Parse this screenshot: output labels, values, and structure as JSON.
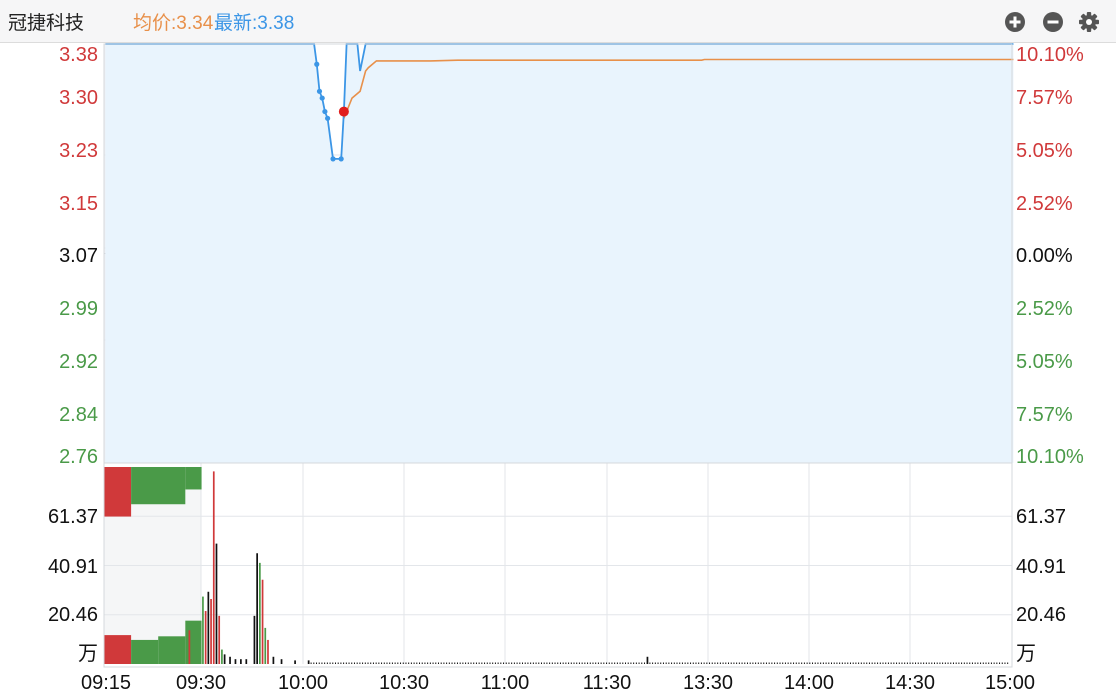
{
  "header": {
    "stock_name": "冠捷科技",
    "avg_text": "均价:3.34",
    "last_text": "最新:3.38",
    "buttons": [
      "zoom-in-icon",
      "zoom-out-icon",
      "settings-gear-icon"
    ]
  },
  "colors": {
    "up": "#d0393a",
    "down": "#4a9a48",
    "neutral": "#111111",
    "price_line": "#3c96e6",
    "avg_line": "#e8904a",
    "area_fill": "#e9f4fd",
    "pre_market_fill": "#eef1f4",
    "grid": "#e3e6ea"
  },
  "chart_data": {
    "type": "line",
    "price_axis": {
      "left_ticks": [
        "3.38",
        "3.30",
        "3.23",
        "3.15",
        "3.07",
        "2.99",
        "2.92",
        "2.84",
        "2.76"
      ],
      "right_ticks": [
        "10.10%",
        "7.57%",
        "5.05%",
        "2.52%",
        "0.00%",
        "2.52%",
        "5.05%",
        "7.57%",
        "10.10%"
      ],
      "tick_values": [
        3.38,
        3.3,
        3.23,
        3.15,
        3.07,
        2.99,
        2.92,
        2.84,
        2.76
      ],
      "tick_direction": [
        "up",
        "up",
        "up",
        "up",
        "neutral",
        "down",
        "down",
        "down",
        "down"
      ],
      "ylim": [
        2.76,
        3.38
      ],
      "prev_close": 3.07
    },
    "volume_axis": {
      "left_ticks": [
        "61.37",
        "40.91",
        "20.46"
      ],
      "right_ticks": [
        "61.37",
        "40.91",
        "20.46"
      ],
      "tick_values": [
        61.37,
        40.91,
        20.46
      ],
      "unit": "万",
      "ylim": [
        0,
        81.82
      ]
    },
    "time_axis": {
      "labels": [
        "09:15",
        "09:30",
        "10:00",
        "10:30",
        "11:00",
        "11:30",
        "13:30",
        "14:00",
        "14:30",
        "15:00"
      ]
    },
    "series": [
      {
        "name": "最新",
        "points": [
          [
            0,
            3.38
          ],
          [
            77,
            3.38
          ],
          [
            78,
            3.35
          ],
          [
            79,
            3.31
          ],
          [
            80,
            3.3
          ],
          [
            81,
            3.28
          ],
          [
            82,
            3.27
          ],
          [
            84,
            3.21
          ],
          [
            87,
            3.21
          ],
          [
            88,
            3.28
          ],
          [
            89,
            3.38
          ],
          [
            93,
            3.38
          ],
          [
            94,
            3.34
          ],
          [
            96,
            3.38
          ],
          [
            335,
            3.38
          ]
        ]
      },
      {
        "name": "均价",
        "points": [
          [
            88,
            3.27
          ],
          [
            91,
            3.3
          ],
          [
            94,
            3.31
          ],
          [
            96,
            3.34
          ],
          [
            97,
            3.345
          ],
          [
            100,
            3.355
          ],
          [
            120,
            3.355
          ],
          [
            130,
            3.356
          ],
          [
            220,
            3.356
          ],
          [
            221,
            3.357
          ],
          [
            335,
            3.357
          ]
        ]
      }
    ],
    "auction_marker": {
      "x": 88,
      "price": 3.28
    },
    "auction_dots": [
      [
        78,
        3.35
      ],
      [
        79,
        3.31
      ],
      [
        80,
        3.3
      ],
      [
        81,
        3.28
      ],
      [
        82,
        3.27
      ],
      [
        84,
        3.21
      ],
      [
        87,
        3.21
      ]
    ],
    "pre_market_volume": [
      {
        "from": 0,
        "to": 10,
        "value": 12,
        "dir": "up"
      },
      {
        "from": 10,
        "to": 20,
        "value": 10,
        "dir": "down"
      },
      {
        "from": 20,
        "to": 30,
        "value": 11.5,
        "dir": "down"
      },
      {
        "from": 30,
        "to": 36,
        "value": 18,
        "dir": "down"
      }
    ],
    "imbalance_bars": [
      {
        "from": 0,
        "to": 10,
        "value": 0.6,
        "dir": "up"
      },
      {
        "from": 10,
        "to": 30,
        "value": 0.35,
        "dir": "down"
      },
      {
        "from": 30,
        "to": 36,
        "value": 0.05,
        "dir": "down"
      }
    ],
    "volume_bars": [
      [
        31,
        14,
        "up"
      ],
      [
        36,
        28,
        "down"
      ],
      [
        37,
        22,
        "up"
      ],
      [
        38,
        30,
        "neutral"
      ],
      [
        39,
        27,
        "up"
      ],
      [
        40,
        80,
        "up"
      ],
      [
        41,
        50,
        "neutral"
      ],
      [
        42,
        20,
        "up"
      ],
      [
        43,
        6,
        "down"
      ],
      [
        44,
        4,
        "neutral"
      ],
      [
        46,
        3,
        "neutral"
      ],
      [
        48,
        2,
        "neutral"
      ],
      [
        50,
        2,
        "neutral"
      ],
      [
        52,
        2,
        "neutral"
      ],
      [
        55,
        20,
        "neutral"
      ],
      [
        56,
        46,
        "neutral"
      ],
      [
        57,
        42,
        "down"
      ],
      [
        58,
        35,
        "up"
      ],
      [
        59,
        15,
        "down"
      ],
      [
        60,
        10,
        "up"
      ],
      [
        62,
        3,
        "neutral"
      ],
      [
        65,
        2,
        "neutral"
      ],
      [
        70,
        1.5,
        "neutral"
      ],
      [
        75,
        1.5,
        "neutral"
      ],
      [
        200,
        3,
        "neutral"
      ]
    ]
  }
}
